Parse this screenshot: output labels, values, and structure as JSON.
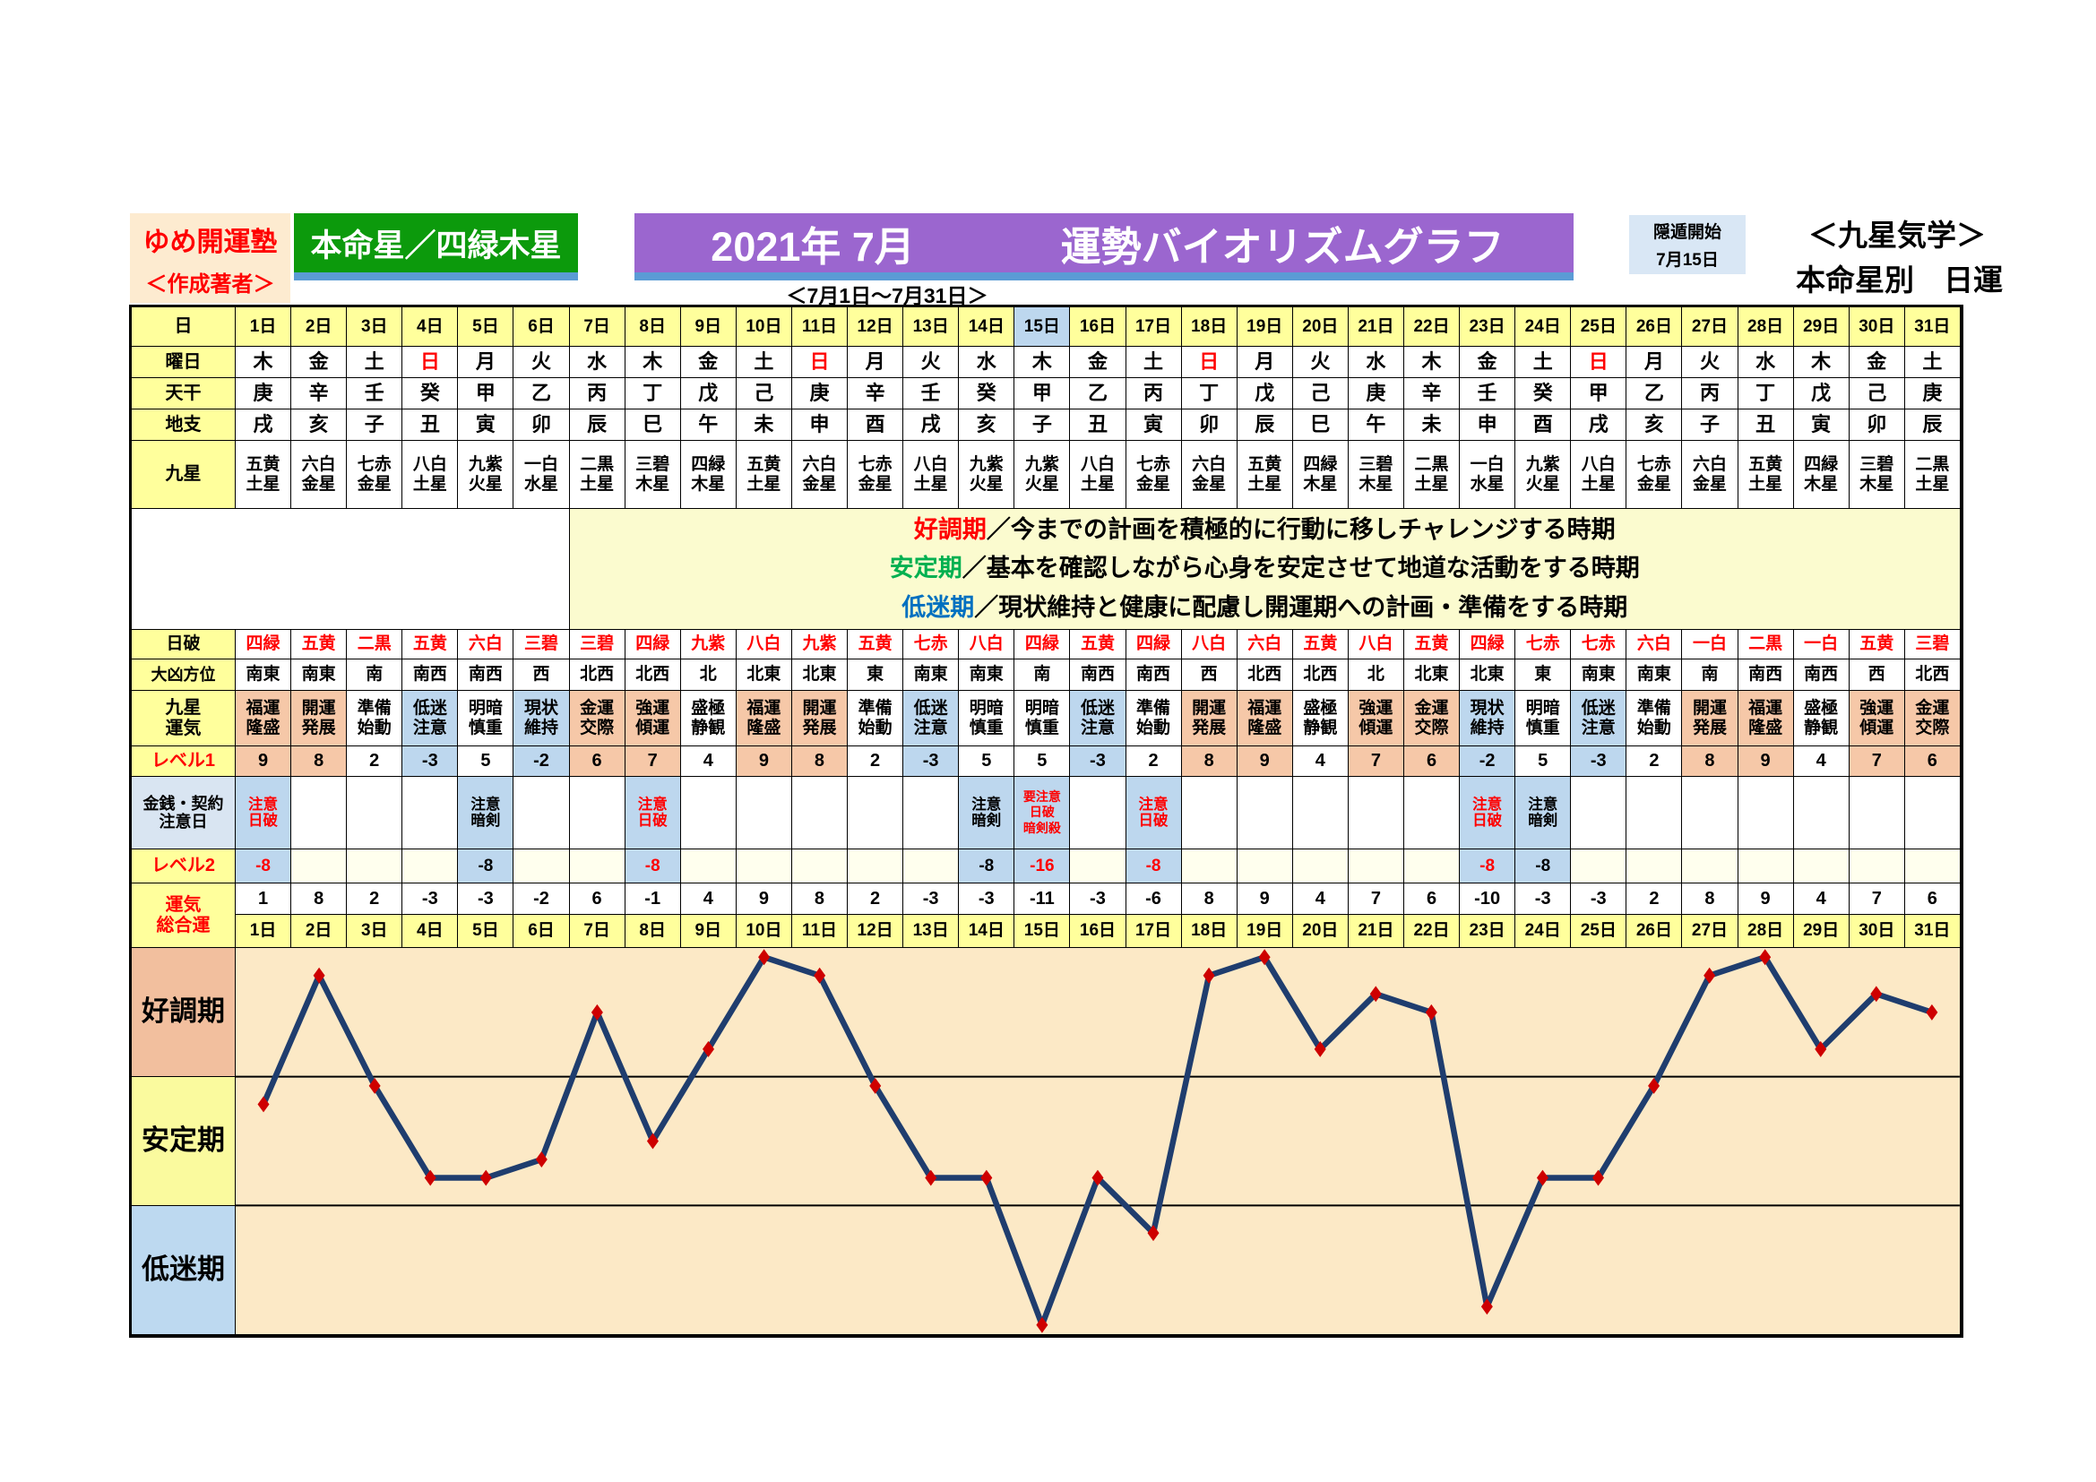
{
  "header": {
    "brand": "ゆめ開運塾",
    "brand_sub": "＜作成著者＞",
    "honmeisei": "本命星／四緑木星",
    "title_year_month": "2021年 7月",
    "title_main": "運勢バイオリズムグラフ",
    "date_range": "＜7月1日～7月31日＞",
    "inton_label": "隠遁開始",
    "inton_date": "7月15日",
    "school_line1": "＜九星気学＞",
    "school_line2": "本命星別　日運"
  },
  "colors": {
    "header_yellow": "#FFFF9C",
    "note_yellow": "#FBFBCF",
    "salmon": "#F6C8A8",
    "light_blue": "#BDD7EE",
    "label_blue": "#D9E5F2",
    "ivory": "#FFFFEE",
    "banner_green": "#0C9A0C",
    "banner_purple": "#9B66CF",
    "underline_blue": "#5B9BD5",
    "cream": "#FDEBD0",
    "accent_red": "#FF0000",
    "zone_salmon": "#F2BF9E",
    "zone_yellow": "#FAFA9E",
    "zone_blue": "#BDD9F0",
    "plot_bg": "#FCE9C6",
    "line_navy": "#1F3D6E",
    "marker_red": "#CE0000",
    "note_good": "#FF0000",
    "note_stable": "#00B050",
    "note_low": "#0070C0"
  },
  "table": {
    "row_labels": {
      "day": "日",
      "weekday": "曜日",
      "tenkan": "天干",
      "chishi": "地支",
      "kyusei": "九星",
      "nippa": "日破",
      "daikyo": "大凶方位",
      "unki": "九星\n運気",
      "level1": "レベル1",
      "kinsen": "金銭・契約\n注意日",
      "level2": "レベル2",
      "sogo": "運気\n総合運"
    },
    "days": [
      "1日",
      "2日",
      "3日",
      "4日",
      "5日",
      "6日",
      "7日",
      "8日",
      "9日",
      "10日",
      "11日",
      "12日",
      "13日",
      "14日",
      "15日",
      "16日",
      "17日",
      "18日",
      "19日",
      "20日",
      "21日",
      "22日",
      "23日",
      "24日",
      "25日",
      "26日",
      "27日",
      "28日",
      "29日",
      "30日",
      "31日"
    ],
    "special_day_index": 14,
    "weekdays": [
      {
        "t": "木"
      },
      {
        "t": "金"
      },
      {
        "t": "土"
      },
      {
        "t": "日",
        "red": true
      },
      {
        "t": "月"
      },
      {
        "t": "火"
      },
      {
        "t": "水"
      },
      {
        "t": "木"
      },
      {
        "t": "金"
      },
      {
        "t": "土"
      },
      {
        "t": "日",
        "red": true
      },
      {
        "t": "月"
      },
      {
        "t": "火"
      },
      {
        "t": "水"
      },
      {
        "t": "木"
      },
      {
        "t": "金"
      },
      {
        "t": "土"
      },
      {
        "t": "日",
        "red": true
      },
      {
        "t": "月"
      },
      {
        "t": "火"
      },
      {
        "t": "水"
      },
      {
        "t": "木"
      },
      {
        "t": "金"
      },
      {
        "t": "土"
      },
      {
        "t": "日",
        "red": true
      },
      {
        "t": "月"
      },
      {
        "t": "火"
      },
      {
        "t": "水"
      },
      {
        "t": "木"
      },
      {
        "t": "金"
      },
      {
        "t": "土"
      }
    ],
    "tenkan": [
      "庚",
      "辛",
      "壬",
      "癸",
      "甲",
      "乙",
      "丙",
      "丁",
      "戊",
      "己",
      "庚",
      "辛",
      "壬",
      "癸",
      "甲",
      "乙",
      "丙",
      "丁",
      "戊",
      "己",
      "庚",
      "辛",
      "壬",
      "癸",
      "甲",
      "乙",
      "丙",
      "丁",
      "戊",
      "己",
      "庚"
    ],
    "chishi": [
      "戌",
      "亥",
      "子",
      "丑",
      "寅",
      "卯",
      "辰",
      "巳",
      "午",
      "未",
      "申",
      "酉",
      "戌",
      "亥",
      "子",
      "丑",
      "寅",
      "卯",
      "辰",
      "巳",
      "午",
      "未",
      "申",
      "酉",
      "戌",
      "亥",
      "子",
      "丑",
      "寅",
      "卯",
      "辰"
    ],
    "kyusei": [
      "五黄\n土星",
      "六白\n金星",
      "七赤\n金星",
      "八白\n土星",
      "九紫\n火星",
      "一白\n水星",
      "二黒\n土星",
      "三碧\n木星",
      "四緑\n木星",
      "五黄\n土星",
      "六白\n金星",
      "七赤\n金星",
      "八白\n土星",
      "九紫\n火星",
      "九紫\n火星",
      "八白\n土星",
      "七赤\n金星",
      "六白\n金星",
      "五黄\n土星",
      "四緑\n木星",
      "三碧\n木星",
      "二黒\n土星",
      "一白\n水星",
      "九紫\n火星",
      "八白\n土星",
      "七赤\n金星",
      "六白\n金星",
      "五黄\n土星",
      "四緑\n木星",
      "三碧\n木星",
      "二黒\n土星"
    ],
    "nippa": [
      "四緑",
      "五黄",
      "二黒",
      "五黄",
      "六白",
      "三碧",
      "三碧",
      "四緑",
      "九紫",
      "八白",
      "九紫",
      "五黄",
      "七赤",
      "八白",
      "四緑",
      "五黄",
      "四緑",
      "八白",
      "六白",
      "五黄",
      "八白",
      "五黄",
      "四緑",
      "七赤",
      "七赤",
      "六白",
      "一白",
      "二黒",
      "一白",
      "五黄",
      "三碧"
    ],
    "daikyo": [
      "南東",
      "南東",
      "南",
      "南西",
      "南西",
      "西",
      "北西",
      "北西",
      "北",
      "北東",
      "北東",
      "東",
      "南東",
      "南東",
      "南",
      "南西",
      "南西",
      "西",
      "北西",
      "北西",
      "北",
      "北東",
      "北東",
      "東",
      "南東",
      "南東",
      "南",
      "南西",
      "南西",
      "西",
      "北西"
    ],
    "unki": [
      {
        "t": "福運\n隆盛",
        "tone": "s"
      },
      {
        "t": "開運\n発展",
        "tone": "s"
      },
      {
        "t": "準備\n始動",
        "tone": "w"
      },
      {
        "t": "低迷\n注意",
        "tone": "b"
      },
      {
        "t": "明暗\n慎重",
        "tone": "w"
      },
      {
        "t": "現状\n維持",
        "tone": "b"
      },
      {
        "t": "金運\n交際",
        "tone": "s"
      },
      {
        "t": "強運\n傾運",
        "tone": "s"
      },
      {
        "t": "盛極\n静観",
        "tone": "w"
      },
      {
        "t": "福運\n隆盛",
        "tone": "s"
      },
      {
        "t": "開運\n発展",
        "tone": "s"
      },
      {
        "t": "準備\n始動",
        "tone": "w"
      },
      {
        "t": "低迷\n注意",
        "tone": "b"
      },
      {
        "t": "明暗\n慎重",
        "tone": "w"
      },
      {
        "t": "明暗\n慎重",
        "tone": "w"
      },
      {
        "t": "低迷\n注意",
        "tone": "b"
      },
      {
        "t": "準備\n始動",
        "tone": "w"
      },
      {
        "t": "開運\n発展",
        "tone": "s"
      },
      {
        "t": "福運\n隆盛",
        "tone": "s"
      },
      {
        "t": "盛極\n静観",
        "tone": "w"
      },
      {
        "t": "強運\n傾運",
        "tone": "s"
      },
      {
        "t": "金運\n交際",
        "tone": "s"
      },
      {
        "t": "現状\n維持",
        "tone": "b"
      },
      {
        "t": "明暗\n慎重",
        "tone": "w"
      },
      {
        "t": "低迷\n注意",
        "tone": "b"
      },
      {
        "t": "準備\n始動",
        "tone": "w"
      },
      {
        "t": "開運\n発展",
        "tone": "s"
      },
      {
        "t": "福運\n隆盛",
        "tone": "s"
      },
      {
        "t": "盛極\n静観",
        "tone": "w"
      },
      {
        "t": "強運\n傾運",
        "tone": "s"
      },
      {
        "t": "金運\n交際",
        "tone": "s"
      }
    ],
    "level1": [
      {
        "v": 9,
        "tone": "s"
      },
      {
        "v": 8,
        "tone": "s"
      },
      {
        "v": 2,
        "tone": "w"
      },
      {
        "v": -3,
        "tone": "b"
      },
      {
        "v": 5,
        "tone": "w"
      },
      {
        "v": -2,
        "tone": "b"
      },
      {
        "v": 6,
        "tone": "s"
      },
      {
        "v": 7,
        "tone": "s"
      },
      {
        "v": 4,
        "tone": "w"
      },
      {
        "v": 9,
        "tone": "s"
      },
      {
        "v": 8,
        "tone": "s"
      },
      {
        "v": 2,
        "tone": "w"
      },
      {
        "v": -3,
        "tone": "b"
      },
      {
        "v": 5,
        "tone": "w"
      },
      {
        "v": 5,
        "tone": "w"
      },
      {
        "v": -3,
        "tone": "b"
      },
      {
        "v": 2,
        "tone": "w"
      },
      {
        "v": 8,
        "tone": "s"
      },
      {
        "v": 9,
        "tone": "s"
      },
      {
        "v": 4,
        "tone": "w"
      },
      {
        "v": 7,
        "tone": "s"
      },
      {
        "v": 6,
        "tone": "s"
      },
      {
        "v": -2,
        "tone": "b"
      },
      {
        "v": 5,
        "tone": "w"
      },
      {
        "v": -3,
        "tone": "b"
      },
      {
        "v": 2,
        "tone": "w"
      },
      {
        "v": 8,
        "tone": "s"
      },
      {
        "v": 9,
        "tone": "s"
      },
      {
        "v": 4,
        "tone": "w"
      },
      {
        "v": 7,
        "tone": "s"
      },
      {
        "v": 6,
        "tone": "s"
      }
    ],
    "kinsen": [
      {
        "t": "注意\n日破",
        "red": true
      },
      null,
      null,
      null,
      {
        "t": "注意\n暗剣"
      },
      null,
      null,
      {
        "t": "注意\n日破",
        "red": true
      },
      null,
      null,
      null,
      null,
      null,
      {
        "t": "注意\n暗剣"
      },
      {
        "t": "要注意\n日破\n暗剣殺",
        "red": true,
        "small": true
      },
      null,
      {
        "t": "注意\n日破",
        "red": true
      },
      null,
      null,
      null,
      null,
      null,
      {
        "t": "注意\n日破",
        "red": true
      },
      {
        "t": "注意\n暗剣"
      },
      null,
      null,
      null,
      null,
      null,
      null,
      null
    ],
    "level2": [
      {
        "v": "-8",
        "red": true
      },
      null,
      null,
      null,
      {
        "v": "-8"
      },
      null,
      null,
      {
        "v": "-8",
        "red": true
      },
      null,
      null,
      null,
      null,
      null,
      {
        "v": "-8"
      },
      {
        "v": "-16",
        "red": true
      },
      null,
      {
        "v": "-8",
        "red": true
      },
      null,
      null,
      null,
      null,
      null,
      {
        "v": "-8",
        "red": true
      },
      {
        "v": "-8"
      },
      null,
      null,
      null,
      null,
      null,
      null,
      null
    ],
    "sogo": [
      1,
      8,
      2,
      -3,
      -3,
      -2,
      6,
      -1,
      4,
      9,
      8,
      2,
      -3,
      -3,
      -11,
      -3,
      -6,
      8,
      9,
      4,
      7,
      6,
      -10,
      -3,
      -3,
      2,
      8,
      9,
      4,
      7,
      6
    ]
  },
  "notes": [
    {
      "label": "好調期",
      "color": "#FF0000",
      "text": "／今までの計画を積極的に行動に移しチャレンジする時期"
    },
    {
      "label": "安定期",
      "color": "#00B050",
      "text": "／基本を確認しながら心身を安定させて地道な活動をする時期"
    },
    {
      "label": "低迷期",
      "color": "#0070C0",
      "text": "／現状維持と健康に配慮し開運期への計画・準備をする時期"
    }
  ],
  "chart_data": {
    "type": "line",
    "title": "運勢バイオリズムグラフ",
    "period": "2021年 7月（7月1日～7月31日）",
    "categories": [
      "1日",
      "2日",
      "3日",
      "4日",
      "5日",
      "6日",
      "7日",
      "8日",
      "9日",
      "10日",
      "11日",
      "12日",
      "13日",
      "14日",
      "15日",
      "16日",
      "17日",
      "18日",
      "19日",
      "20日",
      "21日",
      "22日",
      "23日",
      "24日",
      "25日",
      "26日",
      "27日",
      "28日",
      "29日",
      "30日",
      "31日"
    ],
    "series": [
      {
        "name": "運気総合運",
        "values": [
          1,
          8,
          2,
          -3,
          -3,
          -2,
          6,
          -1,
          4,
          9,
          8,
          2,
          -3,
          -3,
          -11,
          -3,
          -6,
          8,
          9,
          4,
          7,
          6,
          -10,
          -3,
          -3,
          2,
          8,
          9,
          4,
          7,
          6
        ]
      }
    ],
    "ylim": [
      -11.5,
      9.5
    ],
    "zone_boundaries": [
      2.5,
      -4.5
    ],
    "zones": [
      {
        "label": "好調期",
        "range": [
          2.5,
          9.5
        ]
      },
      {
        "label": "安定期",
        "range": [
          -4.5,
          2.5
        ]
      },
      {
        "label": "低迷期",
        "range": [
          -11.5,
          -4.5
        ]
      }
    ],
    "grid": false,
    "legend_position": "none",
    "line_color": "#1F3D6E",
    "marker": "diamond",
    "marker_color": "#CE0000",
    "plot_bg": "#FCE9C6"
  }
}
